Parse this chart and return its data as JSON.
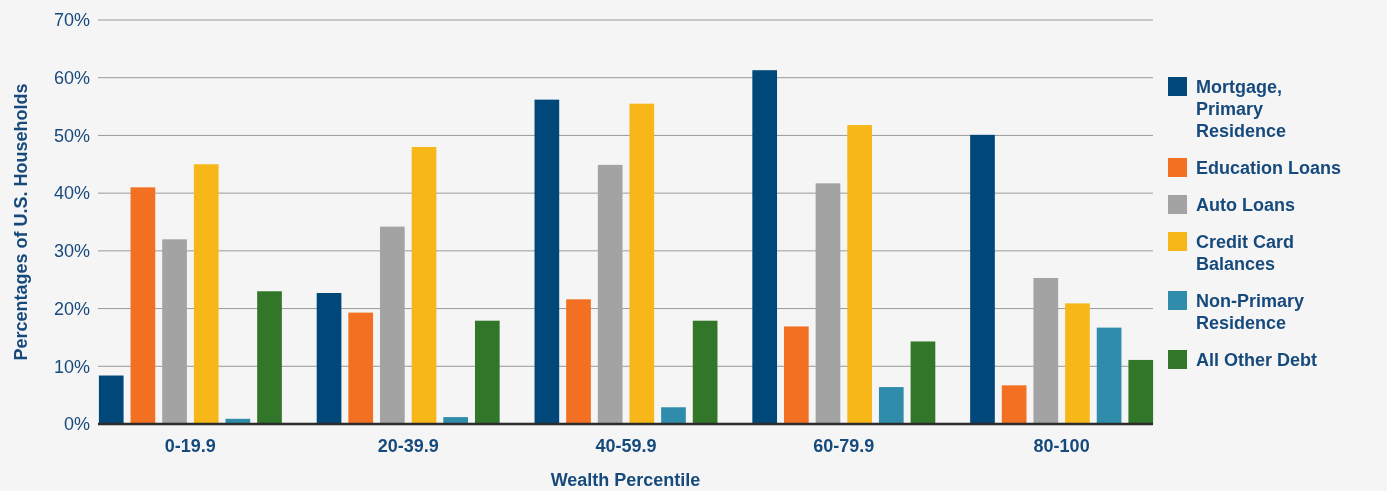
{
  "chart_data": {
    "type": "bar",
    "xlabel": "Wealth Percentile",
    "ylabel": "Percentages of U.S. Households",
    "categories": [
      "0-19.9",
      "20-39.9",
      "40-59.9",
      "60-79.9",
      "80-100"
    ],
    "series": [
      {
        "name": "Mortgage, Primary Residence",
        "color": "#00487a",
        "values": [
          8.4,
          22.7,
          56.2,
          61.3,
          50.1
        ]
      },
      {
        "name": "Education Loans",
        "color": "#f36f21",
        "values": [
          41.0,
          19.3,
          21.6,
          16.9,
          6.7
        ]
      },
      {
        "name": "Auto Loans",
        "color": "#a4a3a4",
        "values": [
          32.0,
          34.2,
          44.9,
          41.7,
          25.3
        ]
      },
      {
        "name": "Credit Card Balances",
        "color": "#f7b718",
        "values": [
          45.0,
          48.0,
          55.5,
          51.8,
          20.9
        ]
      },
      {
        "name": "Non-Primary Residence",
        "color": "#2f8dab",
        "values": [
          0.9,
          1.2,
          2.9,
          6.4,
          16.7
        ]
      },
      {
        "name": "All Other Debt",
        "color": "#317629",
        "values": [
          23.0,
          17.9,
          17.9,
          14.3,
          11.1
        ]
      }
    ],
    "ylim": [
      0,
      70
    ],
    "yticks": [
      {
        "value": 0,
        "label": "0%"
      },
      {
        "value": 10,
        "label": "10%"
      },
      {
        "value": 20,
        "label": "20%"
      },
      {
        "value": 30,
        "label": "30%"
      },
      {
        "value": 40,
        "label": "40%"
      },
      {
        "value": 50,
        "label": "50%"
      },
      {
        "value": 60,
        "label": "60%"
      },
      {
        "value": 70,
        "label": "70%"
      }
    ],
    "grid": "y",
    "legend": "right"
  }
}
